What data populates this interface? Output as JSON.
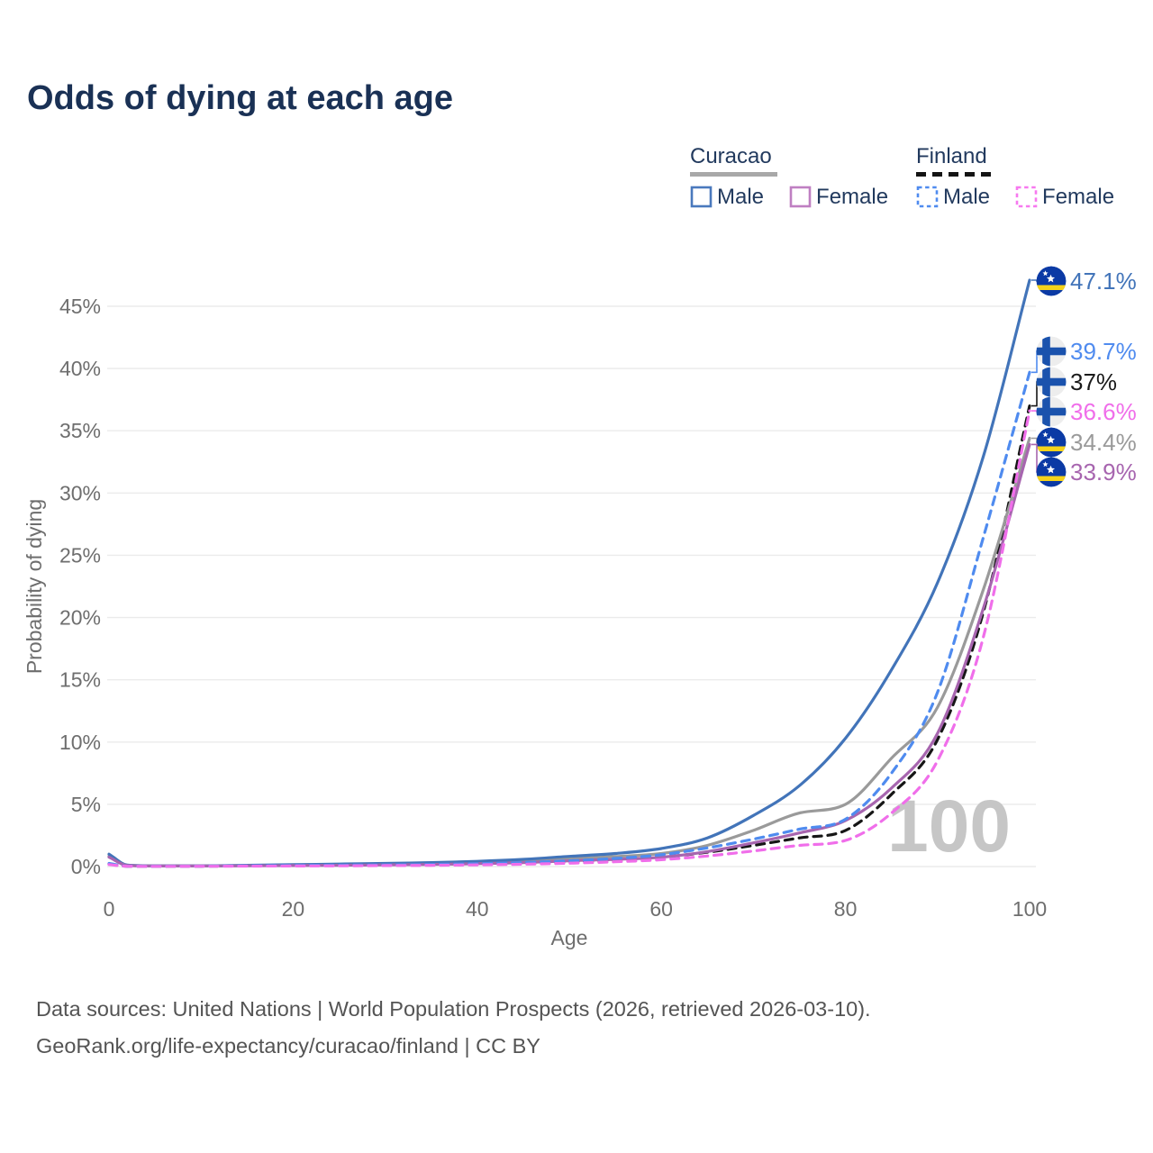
{
  "title": "Odds of dying at each age",
  "legend": {
    "groups": [
      {
        "name": "Curacao",
        "line_style": "solid",
        "underline_color": "#a8a8a8",
        "items": [
          {
            "label": "Male",
            "color": "#4a79bd"
          },
          {
            "label": "Female",
            "color": "#bf7fc2"
          }
        ]
      },
      {
        "name": "Finland",
        "line_style": "dashed",
        "underline_color": "#141414",
        "items": [
          {
            "label": "Male",
            "color": "#4f8bef"
          },
          {
            "label": "Female",
            "color": "#f779ef"
          }
        ]
      }
    ]
  },
  "watermark": "100",
  "footer": {
    "line1": "Data sources: United Nations | World Population Prospects (2026, retrieved 2026-03-10).",
    "line2": "GeoRank.org/life-expectancy/curacao/finland | CC BY"
  },
  "chart_data": {
    "type": "line",
    "title": "Odds of dying at each age",
    "xlabel": "Age",
    "ylabel": "Probability of dying",
    "xlim": [
      0,
      100
    ],
    "ylim_percent": [
      0,
      45
    ],
    "grid": "horizontal",
    "x_ticks": [
      0,
      20,
      40,
      60,
      80,
      100
    ],
    "y_tick_values": [
      0,
      5,
      10,
      15,
      20,
      25,
      30,
      35,
      40,
      45
    ],
    "y_tick_labels": [
      "0%",
      "5%",
      "10%",
      "15%",
      "20%",
      "25%",
      "30%",
      "35%",
      "40%",
      "45%"
    ],
    "ages": [
      0,
      2,
      5,
      10,
      15,
      20,
      25,
      30,
      35,
      40,
      45,
      50,
      55,
      60,
      65,
      70,
      75,
      80,
      85,
      90,
      95,
      100
    ],
    "series": [
      {
        "id": "finland-both",
        "name": "Finland (both sexes)",
        "country": "finland",
        "dash": "dashed",
        "color": "#161616",
        "label_color": "#1a1a1a",
        "end_value": 37.0,
        "end_label": "37%",
        "values": [
          0.2,
          0.03,
          0.02,
          0.03,
          0.05,
          0.07,
          0.09,
          0.11,
          0.14,
          0.19,
          0.26,
          0.37,
          0.52,
          0.75,
          1.15,
          1.7,
          2.3,
          2.9,
          5.8,
          10.2,
          20.5,
          37.0
        ]
      },
      {
        "id": "curacao-both",
        "name": "Curacao (both sexes)",
        "country": "curacao",
        "dash": "solid",
        "color": "#9a9a9a",
        "label_color": "#9a9a9a",
        "end_value": 34.4,
        "end_label": "34.4%",
        "values": [
          0.85,
          0.1,
          0.05,
          0.05,
          0.08,
          0.11,
          0.14,
          0.18,
          0.24,
          0.32,
          0.44,
          0.62,
          0.8,
          1.05,
          1.7,
          2.9,
          4.3,
          5.0,
          8.7,
          12.8,
          22.3,
          34.4
        ]
      },
      {
        "id": "curacao-male",
        "name": "Curacao Male",
        "country": "curacao",
        "dash": "solid",
        "color": "#4274b9",
        "label_color": "#4274b9",
        "end_value": 47.1,
        "end_label": "47.1%",
        "values": [
          1.0,
          0.12,
          0.06,
          0.06,
          0.1,
          0.15,
          0.2,
          0.25,
          0.32,
          0.42,
          0.58,
          0.82,
          1.05,
          1.45,
          2.3,
          4.1,
          6.5,
          10.3,
          15.8,
          22.8,
          33.0,
          47.1
        ]
      },
      {
        "id": "curacao-female",
        "name": "Curacao Female",
        "country": "curacao",
        "dash": "solid",
        "color": "#a765af",
        "label_color": "#a765af",
        "end_value": 33.9,
        "end_label": "33.9%",
        "values": [
          0.75,
          0.09,
          0.04,
          0.04,
          0.06,
          0.08,
          0.1,
          0.13,
          0.17,
          0.23,
          0.32,
          0.46,
          0.58,
          0.75,
          1.2,
          1.9,
          2.7,
          3.7,
          6.3,
          10.7,
          20.8,
          33.9
        ]
      },
      {
        "id": "finland-male",
        "name": "Finland Male",
        "country": "finland",
        "dash": "dashed",
        "color": "#4f8bef",
        "label_color": "#4f8bef",
        "end_value": 39.7,
        "end_label": "39.7%",
        "values": [
          0.25,
          0.03,
          0.02,
          0.03,
          0.06,
          0.09,
          0.11,
          0.13,
          0.17,
          0.23,
          0.32,
          0.46,
          0.65,
          0.95,
          1.5,
          2.2,
          3.0,
          3.8,
          7.5,
          14.0,
          26.5,
          39.7
        ]
      },
      {
        "id": "finland-female",
        "name": "Finland Female",
        "country": "finland",
        "dash": "dashed",
        "color": "#f06eea",
        "label_color": "#f06eea",
        "end_value": 36.6,
        "end_label": "36.6%",
        "values": [
          0.16,
          0.02,
          0.015,
          0.02,
          0.035,
          0.045,
          0.06,
          0.08,
          0.1,
          0.14,
          0.19,
          0.27,
          0.38,
          0.55,
          0.85,
          1.25,
          1.7,
          2.1,
          4.3,
          8.5,
          18.5,
          36.6
        ]
      }
    ],
    "flag_colors": {
      "curacao_blue": "#0b3aa5",
      "curacao_yellow": "#f5d21a",
      "curacao_star": "#ffffff",
      "finland_bg": "#ededed",
      "finland_cross": "#1a52ad"
    },
    "axis_text_color": "#6e6e6e",
    "grid_color": "#ebebeb",
    "watermark_color": "#c6c6c6"
  }
}
